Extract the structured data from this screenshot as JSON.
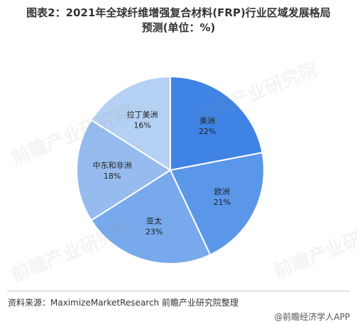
{
  "header": {
    "title_line1": "图表2：2021年全球纤维增强复合材料(FRP)行业区域发展格局",
    "title_line2": "预测(单位：%)"
  },
  "chart_data": {
    "type": "pie",
    "title": "图表2：2021年全球纤维增强复合材料(FRP)行业区域发展格局预测(单位：%)",
    "unit": "%",
    "labels": [
      "美洲",
      "欧洲",
      "亚太",
      "中东和非洲",
      "拉丁美洲"
    ],
    "values": [
      22,
      21,
      23,
      18,
      16
    ],
    "colors": [
      "#3f83e4",
      "#5b97e8",
      "#78a9ec",
      "#96bcef",
      "#b4d0f3"
    ],
    "value_labels": [
      "22%",
      "21%",
      "23%",
      "18%",
      "16%"
    ]
  },
  "footer": {
    "source": "资料来源：MaximizeMarketResearch 前瞻产业研究院整理",
    "brand": "@前瞻经济学人APP"
  },
  "watermark_text": "前瞻产业研究院"
}
